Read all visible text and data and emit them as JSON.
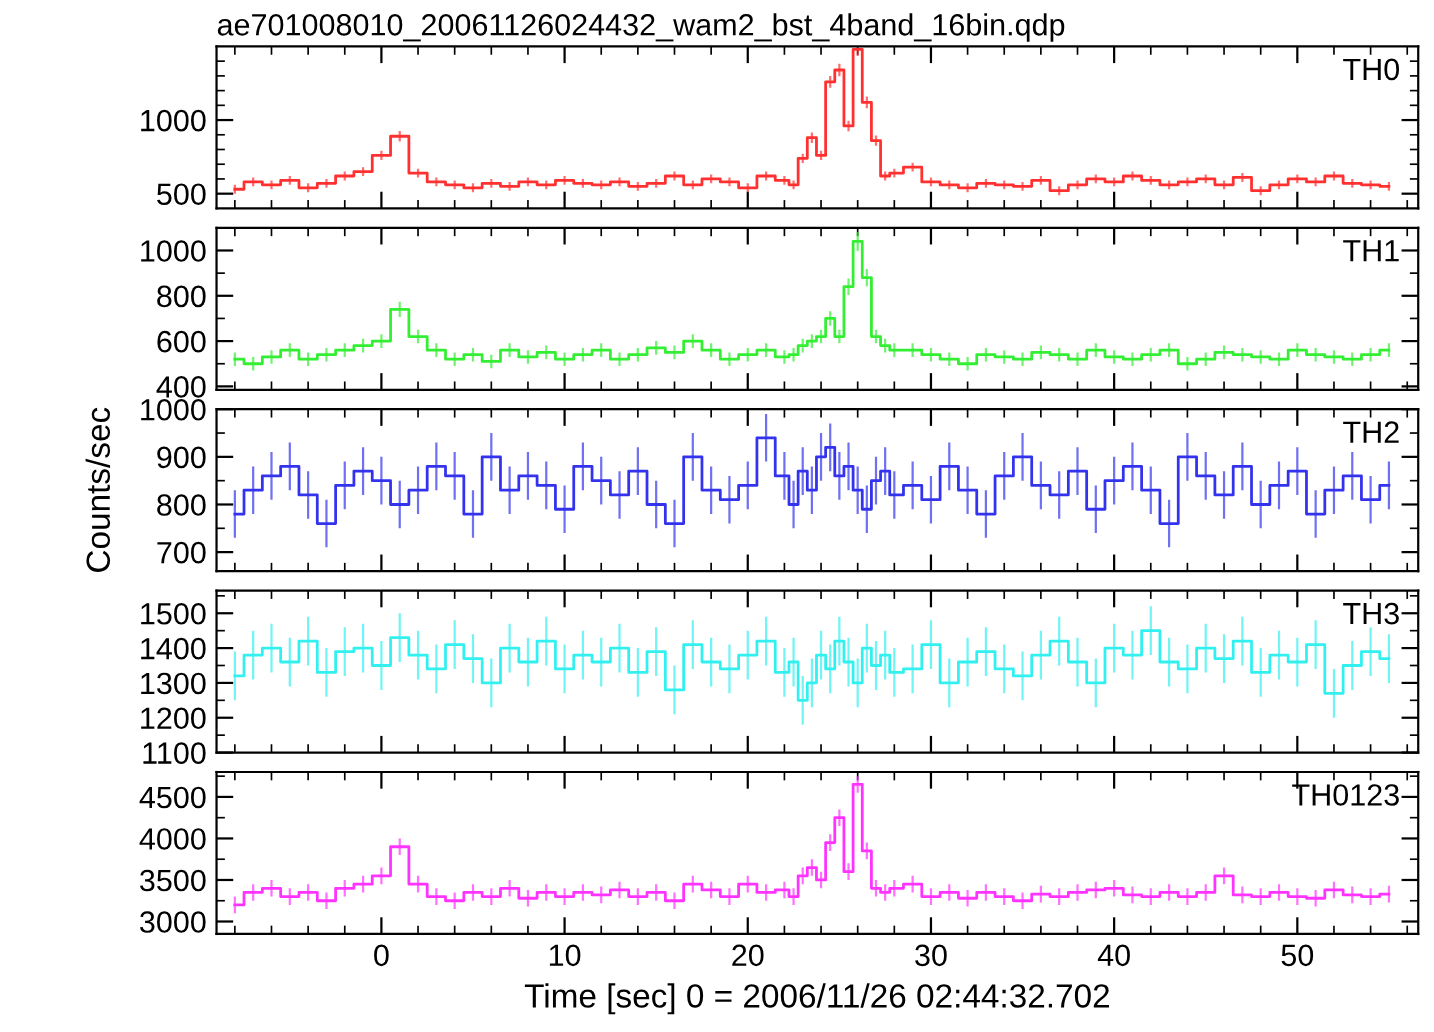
{
  "chart_data": [
    {
      "type": "step",
      "title": "ae701008010_20061126024432_wam2_bst_4band_16bin.qdp",
      "tick_labels": "y",
      "x": [
        -8,
        -7,
        -6,
        -5,
        -4,
        -3,
        -2,
        -1,
        0,
        1,
        2,
        3,
        4,
        5,
        6,
        7,
        8,
        9,
        10,
        11,
        12,
        13,
        14,
        15,
        16,
        17,
        18,
        19,
        20,
        21,
        22,
        22.5,
        23,
        23.5,
        24,
        24.5,
        25,
        25.5,
        26,
        26.5,
        27,
        27.5,
        28,
        29,
        30,
        31,
        32,
        33,
        34,
        35,
        36,
        37,
        38,
        39,
        40,
        41,
        42,
        43,
        44,
        45,
        46,
        47,
        48,
        49,
        50,
        51,
        52,
        53,
        54,
        55
      ],
      "xlim": [
        -9,
        56.6
      ],
      "xticks": [
        {
          "value": -8,
          "label": null
        },
        {
          "value": -6,
          "label": null
        },
        {
          "value": -4,
          "label": null
        },
        {
          "value": -2,
          "label": null
        },
        0,
        {
          "value": 2,
          "label": null
        },
        {
          "value": 4,
          "label": null
        },
        {
          "value": 6,
          "label": null
        },
        {
          "value": 8,
          "label": null
        },
        10,
        {
          "value": 12,
          "label": null
        },
        {
          "value": 14,
          "label": null
        },
        {
          "value": 16,
          "label": null
        },
        {
          "value": 18,
          "label": null
        },
        20,
        {
          "value": 22,
          "label": null
        },
        {
          "value": 24,
          "label": null
        },
        {
          "value": 26,
          "label": null
        },
        {
          "value": 28,
          "label": null
        },
        30,
        {
          "value": 32,
          "label": null
        },
        {
          "value": 34,
          "label": null
        },
        {
          "value": 36,
          "label": null
        },
        {
          "value": 38,
          "label": null
        },
        40,
        {
          "value": 42,
          "label": null
        },
        {
          "value": 44,
          "label": null
        },
        {
          "value": 46,
          "label": null
        },
        {
          "value": 48,
          "label": null
        },
        50,
        {
          "value": 52,
          "label": null
        },
        {
          "value": 54,
          "label": null
        },
        {
          "value": 56,
          "label": null
        }
      ],
      "ylim": [
        400,
        1500
      ],
      "yticks": [
        500,
        {
          "value": 600,
          "label": null
        },
        {
          "value": 700,
          "label": null
        },
        {
          "value": 800,
          "label": null
        },
        {
          "value": 900,
          "label": null
        },
        1000,
        {
          "value": 1100,
          "label": null
        },
        {
          "value": 1200,
          "label": null
        },
        {
          "value": 1300,
          "label": null
        },
        {
          "value": 1400,
          "label": null
        }
      ],
      "series": [
        {
          "name": "TH0",
          "color": "#ff3030",
          "values": [
            530,
            580,
            560,
            590,
            540,
            570,
            620,
            650,
            760,
            890,
            640,
            580,
            560,
            540,
            570,
            550,
            580,
            560,
            590,
            570,
            560,
            580,
            550,
            570,
            620,
            560,
            600,
            580,
            540,
            620,
            590,
            560,
            740,
            880,
            760,
            1260,
            1340,
            960,
            1480,
            1120,
            860,
            620,
            640,
            680,
            580,
            560,
            540,
            570,
            560,
            550,
            590,
            520,
            560,
            600,
            580,
            620,
            590,
            560,
            580,
            600,
            560,
            610,
            520,
            560,
            600,
            580,
            620,
            570,
            560,
            550
          ],
          "errors": [
            30,
            30,
            30,
            30,
            30,
            30,
            30,
            30,
            32,
            35,
            30,
            30,
            30,
            30,
            30,
            30,
            30,
            30,
            30,
            30,
            30,
            30,
            30,
            30,
            30,
            30,
            30,
            30,
            30,
            30,
            30,
            30,
            32,
            35,
            32,
            40,
            42,
            36,
            45,
            40,
            35,
            30,
            30,
            30,
            30,
            30,
            30,
            30,
            30,
            30,
            30,
            30,
            30,
            30,
            30,
            30,
            30,
            30,
            30,
            30,
            30,
            30,
            30,
            30,
            30,
            30,
            30,
            30,
            30,
            30
          ]
        }
      ]
    },
    {
      "type": "step",
      "tick_labels": "y",
      "x": [
        -8,
        -7,
        -6,
        -5,
        -4,
        -3,
        -2,
        -1,
        0,
        1,
        2,
        3,
        4,
        5,
        6,
        7,
        8,
        9,
        10,
        11,
        12,
        13,
        14,
        15,
        16,
        17,
        18,
        19,
        20,
        21,
        22,
        22.5,
        23,
        23.5,
        24,
        24.5,
        25,
        25.5,
        26,
        26.5,
        27,
        27.5,
        28,
        29,
        30,
        31,
        32,
        33,
        34,
        35,
        36,
        37,
        38,
        39,
        40,
        41,
        42,
        43,
        44,
        45,
        46,
        47,
        48,
        49,
        50,
        51,
        52,
        53,
        54,
        55
      ],
      "xlim": [
        -9,
        56.6
      ],
      "xticks": [
        {
          "value": -8,
          "label": null
        },
        {
          "value": -6,
          "label": null
        },
        {
          "value": -4,
          "label": null
        },
        {
          "value": -2,
          "label": null
        },
        0,
        {
          "value": 2,
          "label": null
        },
        {
          "value": 4,
          "label": null
        },
        {
          "value": 6,
          "label": null
        },
        {
          "value": 8,
          "label": null
        },
        10,
        {
          "value": 12,
          "label": null
        },
        {
          "value": 14,
          "label": null
        },
        {
          "value": 16,
          "label": null
        },
        {
          "value": 18,
          "label": null
        },
        20,
        {
          "value": 22,
          "label": null
        },
        {
          "value": 24,
          "label": null
        },
        {
          "value": 26,
          "label": null
        },
        {
          "value": 28,
          "label": null
        },
        30,
        {
          "value": 32,
          "label": null
        },
        {
          "value": 34,
          "label": null
        },
        {
          "value": 36,
          "label": null
        },
        {
          "value": 38,
          "label": null
        },
        40,
        {
          "value": 42,
          "label": null
        },
        {
          "value": 44,
          "label": null
        },
        {
          "value": 46,
          "label": null
        },
        {
          "value": 48,
          "label": null
        },
        50,
        {
          "value": 52,
          "label": null
        },
        {
          "value": 54,
          "label": null
        },
        {
          "value": 56,
          "label": null
        }
      ],
      "ylim": [
        385,
        1100
      ],
      "yticks": [
        400,
        {
          "value": 500,
          "label": null
        },
        600,
        {
          "value": 700,
          "label": null
        },
        800,
        {
          "value": 900,
          "label": null
        },
        1000
      ],
      "series": [
        {
          "name": "TH1",
          "color": "#33ee33",
          "values": [
            520,
            500,
            530,
            560,
            520,
            540,
            560,
            580,
            600,
            740,
            620,
            560,
            520,
            540,
            510,
            560,
            530,
            550,
            520,
            540,
            560,
            520,
            540,
            570,
            550,
            600,
            560,
            520,
            540,
            560,
            530,
            540,
            580,
            600,
            620,
            700,
            620,
            840,
            1040,
            880,
            620,
            580,
            560,
            560,
            540,
            520,
            500,
            540,
            530,
            520,
            550,
            540,
            520,
            560,
            530,
            520,
            540,
            560,
            500,
            520,
            550,
            540,
            530,
            520,
            560,
            540,
            530,
            520,
            540,
            560
          ],
          "errors": [
            30,
            30,
            30,
            30,
            30,
            30,
            30,
            30,
            30,
            34,
            30,
            30,
            30,
            30,
            30,
            30,
            30,
            30,
            30,
            30,
            30,
            30,
            30,
            30,
            30,
            30,
            30,
            30,
            30,
            30,
            30,
            30,
            30,
            30,
            30,
            32,
            30,
            36,
            42,
            38,
            30,
            30,
            30,
            30,
            30,
            30,
            30,
            30,
            30,
            30,
            30,
            30,
            30,
            30,
            30,
            30,
            30,
            30,
            30,
            30,
            30,
            30,
            30,
            30,
            30,
            30,
            30,
            30,
            30,
            30
          ]
        }
      ]
    },
    {
      "type": "step",
      "tick_labels": "y",
      "ylabel": "Counts/sec",
      "x": [
        -8,
        -7,
        -6,
        -5,
        -4,
        -3,
        -2,
        -1,
        0,
        1,
        2,
        3,
        4,
        5,
        6,
        7,
        8,
        9,
        10,
        11,
        12,
        13,
        14,
        15,
        16,
        17,
        18,
        19,
        20,
        21,
        22,
        22.5,
        23,
        23.5,
        24,
        24.5,
        25,
        25.5,
        26,
        26.5,
        27,
        27.5,
        28,
        29,
        30,
        31,
        32,
        33,
        34,
        35,
        36,
        37,
        38,
        39,
        40,
        41,
        42,
        43,
        44,
        45,
        46,
        47,
        48,
        49,
        50,
        51,
        52,
        53,
        54,
        55
      ],
      "xlim": [
        -9,
        56.6
      ],
      "xticks": [
        {
          "value": -8,
          "label": null
        },
        {
          "value": -6,
          "label": null
        },
        {
          "value": -4,
          "label": null
        },
        {
          "value": -2,
          "label": null
        },
        0,
        {
          "value": 2,
          "label": null
        },
        {
          "value": 4,
          "label": null
        },
        {
          "value": 6,
          "label": null
        },
        {
          "value": 8,
          "label": null
        },
        10,
        {
          "value": 12,
          "label": null
        },
        {
          "value": 14,
          "label": null
        },
        {
          "value": 16,
          "label": null
        },
        {
          "value": 18,
          "label": null
        },
        20,
        {
          "value": 22,
          "label": null
        },
        {
          "value": 24,
          "label": null
        },
        {
          "value": 26,
          "label": null
        },
        {
          "value": 28,
          "label": null
        },
        30,
        {
          "value": 32,
          "label": null
        },
        {
          "value": 34,
          "label": null
        },
        {
          "value": 36,
          "label": null
        },
        {
          "value": 38,
          "label": null
        },
        40,
        {
          "value": 42,
          "label": null
        },
        {
          "value": 44,
          "label": null
        },
        {
          "value": 46,
          "label": null
        },
        {
          "value": 48,
          "label": null
        },
        50,
        {
          "value": 52,
          "label": null
        },
        {
          "value": 54,
          "label": null
        },
        {
          "value": 56,
          "label": null
        }
      ],
      "ylim": [
        660,
        1000
      ],
      "yticks": [
        700,
        {
          "value": 750,
          "label": null
        },
        800,
        {
          "value": 850,
          "label": null
        },
        900,
        {
          "value": 950,
          "label": null
        },
        1000
      ],
      "series": [
        {
          "name": "TH2",
          "color": "#3333ee",
          "values": [
            780,
            830,
            860,
            880,
            820,
            760,
            840,
            870,
            850,
            800,
            830,
            880,
            860,
            780,
            900,
            830,
            860,
            840,
            790,
            880,
            850,
            820,
            870,
            800,
            760,
            900,
            830,
            810,
            840,
            940,
            860,
            800,
            870,
            830,
            900,
            920,
            860,
            880,
            830,
            790,
            850,
            870,
            820,
            840,
            810,
            880,
            830,
            780,
            860,
            900,
            840,
            820,
            870,
            790,
            850,
            880,
            830,
            760,
            900,
            860,
            820,
            880,
            800,
            840,
            870,
            780,
            830,
            860,
            810,
            840
          ],
          "errors": [
            50,
            50,
            50,
            50,
            50,
            50,
            50,
            50,
            50,
            50,
            50,
            50,
            50,
            50,
            50,
            50,
            50,
            50,
            50,
            50,
            50,
            50,
            50,
            50,
            50,
            50,
            50,
            50,
            50,
            50,
            50,
            50,
            50,
            50,
            50,
            50,
            50,
            50,
            50,
            50,
            50,
            50,
            50,
            50,
            50,
            50,
            50,
            50,
            50,
            50,
            50,
            50,
            50,
            50,
            50,
            50,
            50,
            50,
            50,
            50,
            50,
            50,
            50,
            50,
            50,
            50,
            50,
            50,
            50,
            50
          ]
        }
      ]
    },
    {
      "type": "step",
      "tick_labels": "y",
      "x": [
        -8,
        -7,
        -6,
        -5,
        -4,
        -3,
        -2,
        -1,
        0,
        1,
        2,
        3,
        4,
        5,
        6,
        7,
        8,
        9,
        10,
        11,
        12,
        13,
        14,
        15,
        16,
        17,
        18,
        19,
        20,
        21,
        22,
        22.5,
        23,
        23.5,
        24,
        24.5,
        25,
        25.5,
        26,
        26.5,
        27,
        27.5,
        28,
        29,
        30,
        31,
        32,
        33,
        34,
        35,
        36,
        37,
        38,
        39,
        40,
        41,
        42,
        43,
        44,
        45,
        46,
        47,
        48,
        49,
        50,
        51,
        52,
        53,
        54,
        55
      ],
      "xlim": [
        -9,
        56.6
      ],
      "xticks": [
        {
          "value": -8,
          "label": null
        },
        {
          "value": -6,
          "label": null
        },
        {
          "value": -4,
          "label": null
        },
        {
          "value": -2,
          "label": null
        },
        0,
        {
          "value": 2,
          "label": null
        },
        {
          "value": 4,
          "label": null
        },
        {
          "value": 6,
          "label": null
        },
        {
          "value": 8,
          "label": null
        },
        10,
        {
          "value": 12,
          "label": null
        },
        {
          "value": 14,
          "label": null
        },
        {
          "value": 16,
          "label": null
        },
        {
          "value": 18,
          "label": null
        },
        20,
        {
          "value": 22,
          "label": null
        },
        {
          "value": 24,
          "label": null
        },
        {
          "value": 26,
          "label": null
        },
        {
          "value": 28,
          "label": null
        },
        30,
        {
          "value": 32,
          "label": null
        },
        {
          "value": 34,
          "label": null
        },
        {
          "value": 36,
          "label": null
        },
        {
          "value": 38,
          "label": null
        },
        40,
        {
          "value": 42,
          "label": null
        },
        {
          "value": 44,
          "label": null
        },
        {
          "value": 46,
          "label": null
        },
        {
          "value": 48,
          "label": null
        },
        50,
        {
          "value": 52,
          "label": null
        },
        {
          "value": 54,
          "label": null
        },
        {
          "value": 56,
          "label": null
        }
      ],
      "ylim": [
        1100,
        1565
      ],
      "yticks": [
        1100,
        {
          "value": 1150,
          "label": null
        },
        1200,
        {
          "value": 1250,
          "label": null
        },
        1300,
        {
          "value": 1350,
          "label": null
        },
        1400,
        {
          "value": 1450,
          "label": null
        },
        1500,
        {
          "value": 1550,
          "label": null
        }
      ],
      "series": [
        {
          "name": "TH3",
          "color": "#33f0f0",
          "values": [
            1320,
            1380,
            1400,
            1360,
            1420,
            1330,
            1390,
            1400,
            1350,
            1430,
            1380,
            1340,
            1410,
            1370,
            1300,
            1400,
            1360,
            1420,
            1340,
            1380,
            1360,
            1400,
            1330,
            1390,
            1280,
            1410,
            1360,
            1340,
            1380,
            1420,
            1330,
            1360,
            1250,
            1300,
            1380,
            1340,
            1420,
            1360,
            1300,
            1400,
            1350,
            1380,
            1330,
            1340,
            1410,
            1300,
            1360,
            1390,
            1340,
            1320,
            1380,
            1420,
            1360,
            1300,
            1400,
            1380,
            1450,
            1360,
            1340,
            1400,
            1370,
            1420,
            1330,
            1380,
            1360,
            1410,
            1270,
            1350,
            1390,
            1370
          ],
          "errors": [
            70,
            70,
            70,
            70,
            70,
            70,
            70,
            70,
            70,
            70,
            70,
            70,
            70,
            70,
            70,
            70,
            70,
            70,
            70,
            70,
            70,
            70,
            70,
            70,
            70,
            70,
            70,
            70,
            70,
            70,
            70,
            70,
            70,
            70,
            70,
            70,
            70,
            70,
            70,
            70,
            70,
            70,
            70,
            70,
            70,
            70,
            70,
            70,
            70,
            70,
            70,
            70,
            70,
            70,
            70,
            70,
            70,
            70,
            70,
            70,
            70,
            70,
            70,
            70,
            70,
            70,
            70,
            70,
            70,
            70
          ]
        }
      ]
    },
    {
      "type": "step",
      "xlabel": "Time [sec] 0 = 2006/11/26 02:44:32.702",
      "x": [
        -8,
        -7,
        -6,
        -5,
        -4,
        -3,
        -2,
        -1,
        0,
        1,
        2,
        3,
        4,
        5,
        6,
        7,
        8,
        9,
        10,
        11,
        12,
        13,
        14,
        15,
        16,
        17,
        18,
        19,
        20,
        21,
        22,
        22.5,
        23,
        23.5,
        24,
        24.5,
        25,
        25.5,
        26,
        26.5,
        27,
        27.5,
        28,
        29,
        30,
        31,
        32,
        33,
        34,
        35,
        36,
        37,
        38,
        39,
        40,
        41,
        42,
        43,
        44,
        45,
        46,
        47,
        48,
        49,
        50,
        51,
        52,
        53,
        54,
        55
      ],
      "xlim": [
        -9,
        56.6
      ],
      "xticks": [
        {
          "value": -8,
          "label": null
        },
        {
          "value": -6,
          "label": null
        },
        {
          "value": -4,
          "label": null
        },
        {
          "value": -2,
          "label": null
        },
        0,
        {
          "value": 2,
          "label": null
        },
        {
          "value": 4,
          "label": null
        },
        {
          "value": 6,
          "label": null
        },
        {
          "value": 8,
          "label": null
        },
        10,
        {
          "value": 12,
          "label": null
        },
        {
          "value": 14,
          "label": null
        },
        {
          "value": 16,
          "label": null
        },
        {
          "value": 18,
          "label": null
        },
        20,
        {
          "value": 22,
          "label": null
        },
        {
          "value": 24,
          "label": null
        },
        {
          "value": 26,
          "label": null
        },
        {
          "value": 28,
          "label": null
        },
        30,
        {
          "value": 32,
          "label": null
        },
        {
          "value": 34,
          "label": null
        },
        {
          "value": 36,
          "label": null
        },
        {
          "value": 38,
          "label": null
        },
        40,
        {
          "value": 42,
          "label": null
        },
        {
          "value": 44,
          "label": null
        },
        {
          "value": 46,
          "label": null
        },
        {
          "value": 48,
          "label": null
        },
        50,
        {
          "value": 52,
          "label": null
        },
        {
          "value": 54,
          "label": null
        },
        {
          "value": 56,
          "label": null
        }
      ],
      "ylim": [
        2850,
        4800
      ],
      "yticks": [
        3000,
        {
          "value": 3250,
          "label": null
        },
        3500,
        {
          "value": 3750,
          "label": null
        },
        4000,
        {
          "value": 4250,
          "label": null
        },
        4500,
        {
          "value": 4750,
          "label": null
        }
      ],
      "series": [
        {
          "name": "TH0123",
          "color": "#ff33ff",
          "values": [
            3200,
            3350,
            3400,
            3300,
            3350,
            3250,
            3400,
            3450,
            3550,
            3900,
            3450,
            3300,
            3250,
            3350,
            3300,
            3400,
            3280,
            3350,
            3300,
            3350,
            3320,
            3380,
            3300,
            3350,
            3250,
            3450,
            3380,
            3300,
            3450,
            3350,
            3380,
            3300,
            3550,
            3650,
            3500,
            3950,
            4250,
            3600,
            4650,
            3850,
            3400,
            3350,
            3400,
            3450,
            3300,
            3350,
            3280,
            3350,
            3300,
            3250,
            3330,
            3300,
            3350,
            3380,
            3400,
            3320,
            3300,
            3350,
            3300,
            3350,
            3550,
            3320,
            3300,
            3350,
            3300,
            3280,
            3380,
            3320,
            3300,
            3330
          ],
          "errors": [
            100,
            100,
            100,
            100,
            100,
            100,
            100,
            100,
            100,
            100,
            100,
            100,
            100,
            100,
            100,
            100,
            100,
            100,
            100,
            100,
            100,
            100,
            100,
            100,
            100,
            100,
            100,
            100,
            100,
            100,
            100,
            100,
            100,
            100,
            100,
            100,
            100,
            100,
            100,
            100,
            100,
            100,
            100,
            100,
            100,
            100,
            100,
            100,
            100,
            100,
            100,
            100,
            100,
            100,
            100,
            100,
            100,
            100,
            100,
            100,
            100,
            100,
            100,
            100,
            100,
            100,
            100,
            100,
            100,
            100
          ]
        }
      ]
    }
  ]
}
